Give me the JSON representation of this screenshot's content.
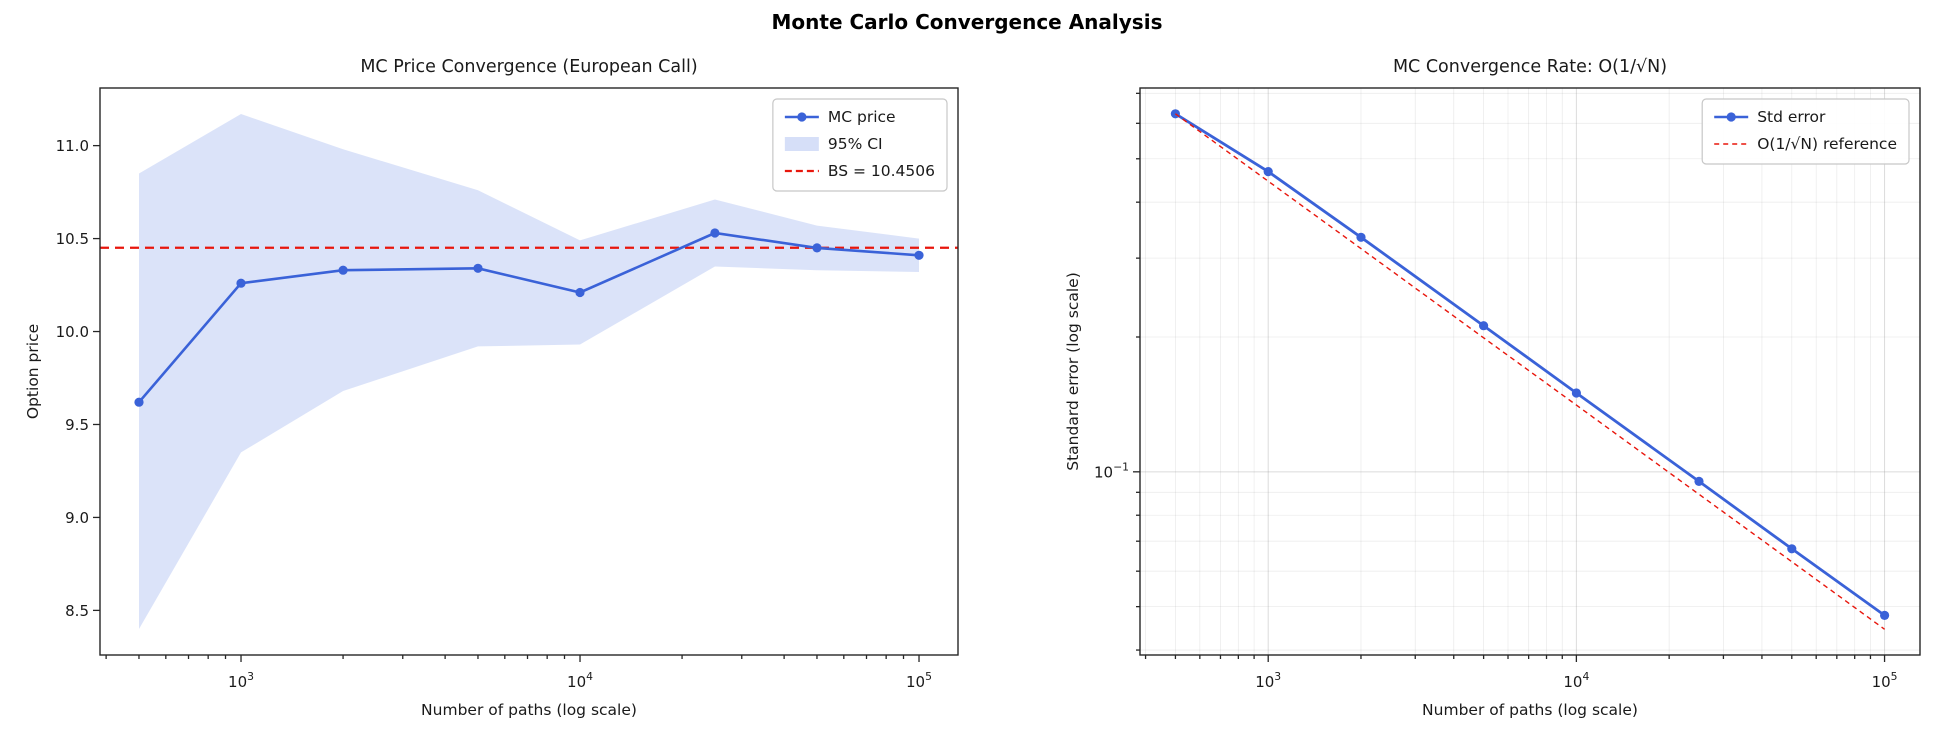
{
  "suptitle": "Monte Carlo Convergence Analysis",
  "colors": {
    "line_blue": "#3a62d8",
    "reference_red": "#e8160c",
    "band_fill": "#5b7fe4",
    "grid": "#999999",
    "spine": "#262626",
    "background": "#ffffff"
  },
  "chart_data": [
    {
      "type": "line",
      "name": "mc-price-convergence-chart",
      "title": "MC Price Convergence (European Call)",
      "xlabel": "Number of paths (log scale)",
      "ylabel": "Option price",
      "xscale": "log",
      "yscale": "linear",
      "x": [
        500,
        1000,
        2000,
        5000,
        10000,
        25000,
        50000,
        100000
      ],
      "series": [
        {
          "name": "MC price",
          "values": [
            9.62,
            10.26,
            10.33,
            10.34,
            10.21,
            10.53,
            10.45,
            10.41
          ],
          "color": "#3a62d8",
          "linewidth": 2.6,
          "marker": true
        }
      ],
      "band": {
        "name": "95% CI",
        "lower": [
          8.4,
          9.35,
          9.68,
          9.92,
          9.93,
          10.35,
          10.33,
          10.32
        ],
        "upper": [
          10.85,
          11.17,
          10.98,
          10.76,
          10.49,
          10.71,
          10.57,
          10.5
        ],
        "color": "#5b7fe4",
        "opacity": 0.22
      },
      "hline": {
        "name": "BS = 10.4506",
        "value": 10.4506,
        "color": "#e8160c",
        "linewidth": 2.2,
        "dash": [
          9,
          6
        ]
      },
      "xlim_log10": [
        2.584,
        5.115
      ],
      "ylim": [
        8.26,
        11.31
      ],
      "xticks": [
        {
          "value": 1000,
          "exp": "3"
        },
        {
          "value": 10000,
          "exp": "4"
        },
        {
          "value": 100000,
          "exp": "5"
        }
      ],
      "yticks": [
        {
          "value": 8.5,
          "label": "8.5"
        },
        {
          "value": 9.0,
          "label": "9.0"
        },
        {
          "value": 9.5,
          "label": "9.5"
        },
        {
          "value": 10.0,
          "label": "10.0"
        },
        {
          "value": 10.5,
          "label": "10.5"
        },
        {
          "value": 11.0,
          "label": "11.0"
        }
      ],
      "grid": false,
      "legend": [
        {
          "label": "MC price",
          "swatch": "marker-line",
          "color": "#3a62d8"
        },
        {
          "label": "95% CI",
          "swatch": "patch",
          "color": "#5b7fe4"
        },
        {
          "label": "BS = 10.4506",
          "swatch": "dashed",
          "color": "#e8160c"
        }
      ]
    },
    {
      "type": "line",
      "name": "mc-convergence-rate-chart",
      "title": "MC Convergence Rate: O(1/√N)",
      "xlabel": "Number of paths (log scale)",
      "ylabel": "Standard error (log scale)",
      "xscale": "log",
      "yscale": "log",
      "x": [
        500,
        1000,
        2000,
        5000,
        10000,
        25000,
        50000,
        100000
      ],
      "series": [
        {
          "name": "Std error",
          "values": [
            0.63,
            0.468,
            0.334,
            0.212,
            0.15,
            0.0952,
            0.0673,
            0.0478
          ],
          "color": "#3a62d8",
          "linewidth": 2.8,
          "marker": true
        },
        {
          "name": "O(1/√N) reference",
          "values": [
            0.63,
            0.4455,
            0.315,
            0.1992,
            0.1409,
            0.0891,
            0.063,
            0.0445
          ],
          "color": "#e8160c",
          "linewidth": 1.4,
          "dash": [
            5,
            4
          ]
        }
      ],
      "xlim_log10": [
        2.584,
        5.115
      ],
      "ylim_log10": [
        -1.409,
        -0.143
      ],
      "xticks": [
        {
          "value": 1000,
          "exp": "3"
        },
        {
          "value": 10000,
          "exp": "4"
        },
        {
          "value": 100000,
          "exp": "5"
        }
      ],
      "yticks": [
        {
          "value": 0.1,
          "exp": "−1"
        }
      ],
      "grid": true,
      "legend": [
        {
          "label": "Std error",
          "swatch": "marker-line",
          "color": "#3a62d8"
        },
        {
          "label": "O(1/√N) reference",
          "swatch": "dashed-thin",
          "color": "#e8160c"
        }
      ]
    }
  ]
}
